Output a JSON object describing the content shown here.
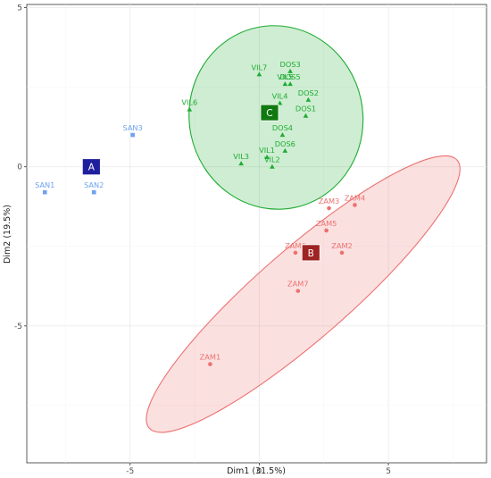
{
  "chart_data": {
    "type": "scatter",
    "title": "",
    "xlabel": "Dim1 (31.5%)",
    "ylabel": "Dim2 (19.5%)",
    "xlim": [
      -9.0,
      8.8
    ],
    "ylim": [
      -9.3,
      5.1
    ],
    "xticks": [
      -5,
      0,
      5
    ],
    "xtick_labels": [
      "-5",
      "0",
      "5"
    ],
    "yticks": [
      -5,
      0,
      5
    ],
    "ytick_labels": [
      "-5",
      "0",
      "5"
    ],
    "grid": true,
    "legend": "none",
    "groups": [
      {
        "name": "A",
        "color": "#6fa2f0",
        "centroid_color": "#1f1f9e",
        "marker": "square",
        "centroid": {
          "x": -6.5,
          "y": 0.0
        },
        "points": [
          {
            "label": "SAN1",
            "x": -8.3,
            "y": -0.8
          },
          {
            "label": "SAN2",
            "x": -6.4,
            "y": -0.8
          },
          {
            "label": "SAN3",
            "x": -4.9,
            "y": 1.0
          }
        ]
      },
      {
        "name": "B",
        "color": "#ec7170",
        "centroid_color": "#9e2323",
        "marker": "circle",
        "centroid": {
          "x": 2.0,
          "y": -2.7
        },
        "ellipse": {
          "cx": 1.7,
          "cy": -4.0,
          "rx": 7.9,
          "ry": 1.42,
          "angle": 41
        },
        "points": [
          {
            "label": "ZAM1",
            "x": -1.9,
            "y": -6.2
          },
          {
            "label": "ZAM2",
            "x": 3.2,
            "y": -2.7
          },
          {
            "label": "ZAM3",
            "x": 2.7,
            "y": -1.3
          },
          {
            "label": "ZAM4",
            "x": 3.7,
            "y": -1.2
          },
          {
            "label": "ZAM5",
            "x": 2.6,
            "y": -2.0
          },
          {
            "label": "ZAM6",
            "x": 1.4,
            "y": -2.7
          },
          {
            "label": "ZAM7",
            "x": 1.5,
            "y": -3.9
          }
        ]
      },
      {
        "name": "C",
        "color": "#1fac33",
        "centroid_color": "#107a10",
        "marker": "triangle",
        "centroid": {
          "x": 0.4,
          "y": 1.7
        },
        "ellipse": {
          "cx": 0.65,
          "cy": 1.55,
          "rx": 3.36,
          "ry": 2.89,
          "angle": 12
        },
        "points": [
          {
            "label": "DOS1",
            "x": 1.8,
            "y": 1.6
          },
          {
            "label": "DOS2",
            "x": 1.9,
            "y": 2.1
          },
          {
            "label": "DOS3",
            "x": 1.2,
            "y": 3.0
          },
          {
            "label": "DOS4",
            "x": 0.9,
            "y": 1.0
          },
          {
            "label": "DOS5",
            "x": 1.2,
            "y": 2.6
          },
          {
            "label": "DOS6",
            "x": 1.0,
            "y": 0.5
          },
          {
            "label": "VIL1",
            "x": 0.3,
            "y": 0.3
          },
          {
            "label": "VIL2",
            "x": 0.5,
            "y": 0.0
          },
          {
            "label": "VIL3",
            "x": -0.7,
            "y": 0.1
          },
          {
            "label": "VIL4",
            "x": 0.8,
            "y": 2.0
          },
          {
            "label": "VIL5",
            "x": 1.0,
            "y": 2.6
          },
          {
            "label": "VIL6",
            "x": -2.7,
            "y": 1.8
          },
          {
            "label": "VIL7",
            "x": 0.0,
            "y": 2.9
          }
        ]
      }
    ]
  }
}
